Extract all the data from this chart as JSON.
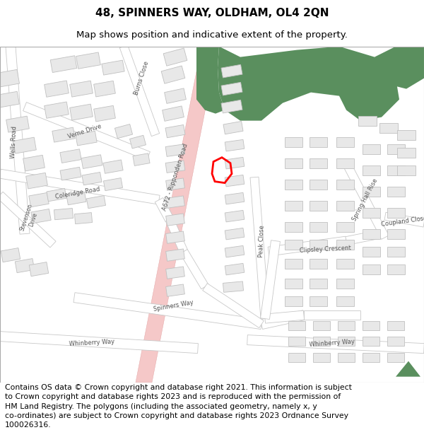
{
  "title": "48, SPINNERS WAY, OLDHAM, OL4 2QN",
  "subtitle": "Map shows position and indicative extent of the property.",
  "title_fontsize": 11,
  "subtitle_fontsize": 9.5,
  "copyright_text": "Contains OS data © Crown copyright and database right 2021. This information is subject\nto Crown copyright and database rights 2023 and is reproduced with the permission of\nHM Land Registry. The polygons (including the associated geometry, namely x, y\nco-ordinates) are subject to Crown copyright and database rights 2023 Ordnance Survey\n100026316.",
  "copyright_fontsize": 7.8,
  "bg_color": "#ffffff",
  "green_fill": "#5a8f5e",
  "pink_road_fill": "#f5c8c8",
  "pink_road_outline": "#e0a0a0",
  "highlight_color": "#ff0000",
  "highlight_linewidth": 2.0,
  "road_fill": "#f0f0f0",
  "road_edge": "#d0d0d0",
  "building_fill": "#e8e8e8",
  "building_edge": "#c0c0c0"
}
